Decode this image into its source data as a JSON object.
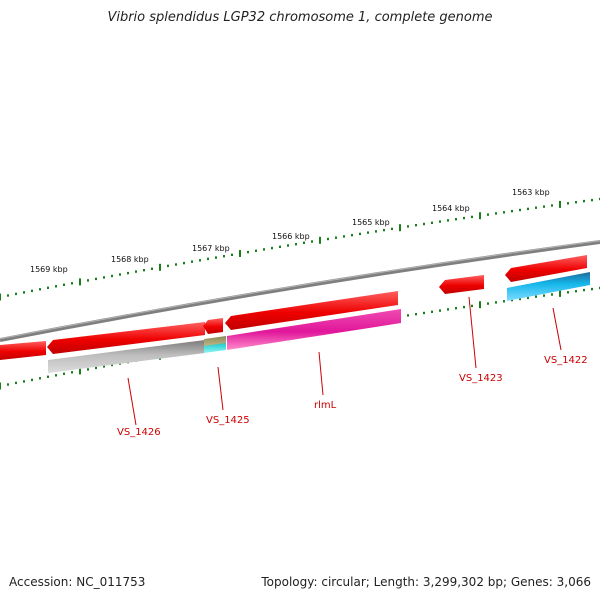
{
  "title": "Vibrio splendidus LGP32 chromosome 1, complete genome",
  "footer": {
    "accession": "Accession: NC_011753",
    "stats": "Topology: circular; Length: 3,299,302 bp; Genes: 3,066"
  },
  "ruler": {
    "labels": [
      "1569 kbp",
      "1568 kbp",
      "1567 kbp",
      "1566 kbp",
      "1565 kbp",
      "1564 kbp",
      "1563 kbp"
    ]
  },
  "gene_labels": [
    "VS_1426",
    "VS_1425",
    "rlmL",
    "VS_1423",
    "VS_1422"
  ],
  "colors": {
    "backbone": "#808080",
    "cds": "#ee0000",
    "feature_magenta": "#e0169a",
    "feature_cyan": "#13b6ea",
    "feature_gray": "#b9b9b9",
    "feature_olive": "#a9a070",
    "feature_teal": "#1ee0e0",
    "tick": "#1a7f1a",
    "label": "#cc0000"
  }
}
